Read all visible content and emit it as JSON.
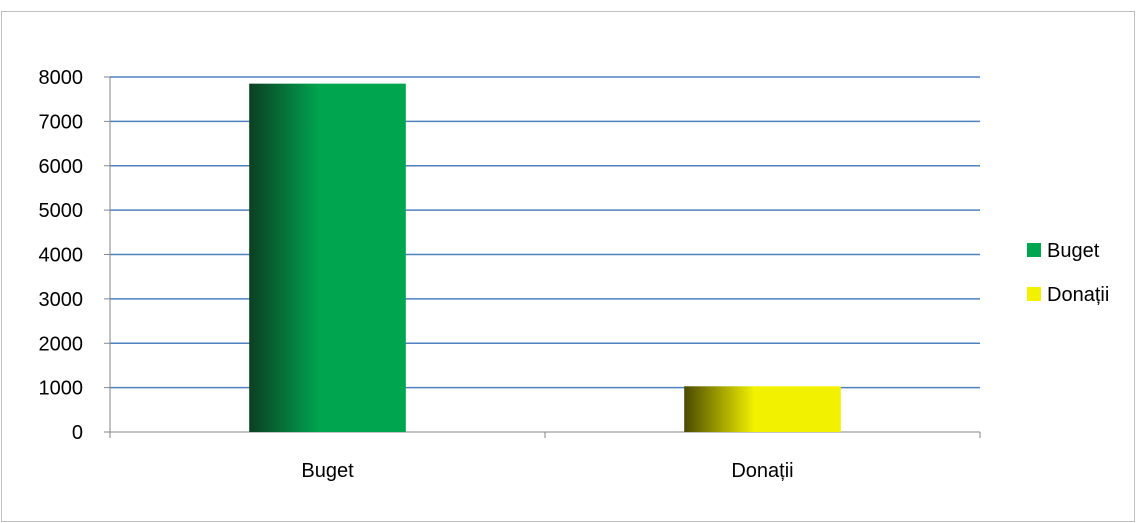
{
  "chart_data": {
    "type": "bar",
    "categories": [
      "Buget",
      "Donații"
    ],
    "series": [
      {
        "name": "Buget",
        "values": [
          7850,
          null
        ],
        "color": "#00a550"
      },
      {
        "name": "Donații",
        "values": [
          null,
          1030
        ],
        "color": "#f2f200"
      }
    ],
    "ylim": [
      0,
      8000
    ],
    "yticks": [
      0,
      1000,
      2000,
      3000,
      4000,
      5000,
      6000,
      7000,
      8000
    ],
    "grid": true,
    "gridline_color": "#4f81bd",
    "legend_position": "right",
    "title": "",
    "xlabel": "",
    "ylabel": ""
  }
}
